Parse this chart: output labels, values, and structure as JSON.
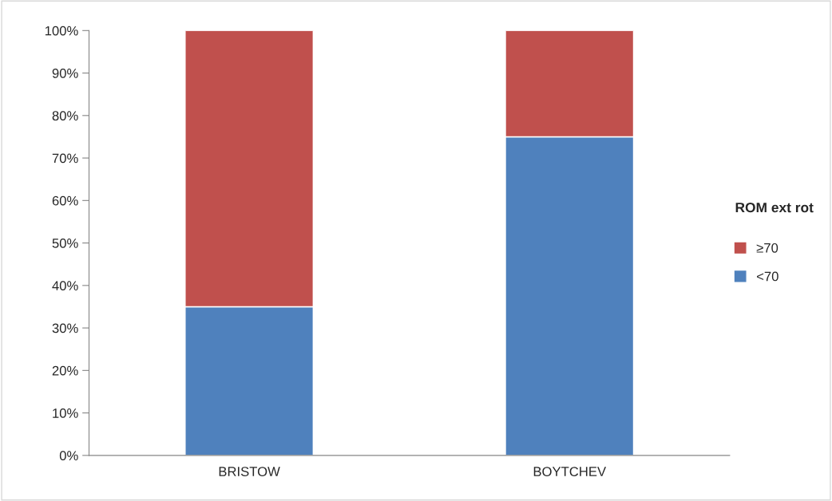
{
  "chart_data": {
    "type": "bar",
    "stacked": true,
    "categories": [
      "BRISTOW",
      "BOYTCHEV"
    ],
    "series": [
      {
        "name": "<70",
        "color": "#4f81bd",
        "values": [
          35,
          75
        ]
      },
      {
        "name": "≥70",
        "color": "#c0504d",
        "values": [
          65,
          25
        ]
      }
    ],
    "legend_title": "ROM ext rot",
    "legend": "right",
    "grid": false,
    "ylim": [
      0,
      100
    ],
    "yticks": [
      {
        "value": 0,
        "label": "0%"
      },
      {
        "value": 10,
        "label": "10%"
      },
      {
        "value": 20,
        "label": "20%"
      },
      {
        "value": 30,
        "label": "30%"
      },
      {
        "value": 40,
        "label": "40%"
      },
      {
        "value": 50,
        "label": "50%"
      },
      {
        "value": 60,
        "label": "60%"
      },
      {
        "value": 70,
        "label": "70%"
      },
      {
        "value": 80,
        "label": "80%"
      },
      {
        "value": 90,
        "label": "90%"
      },
      {
        "value": 100,
        "label": "100%"
      }
    ]
  }
}
